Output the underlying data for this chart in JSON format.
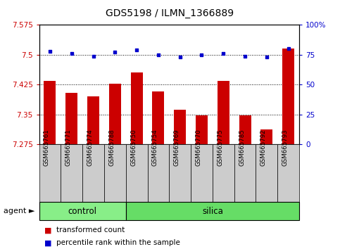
{
  "title": "GDS5198 / ILMN_1366889",
  "samples": [
    "GSM665761",
    "GSM665771",
    "GSM665774",
    "GSM665788",
    "GSM665750",
    "GSM665754",
    "GSM665769",
    "GSM665770",
    "GSM665775",
    "GSM665785",
    "GSM665792",
    "GSM665793"
  ],
  "red_values": [
    7.435,
    7.405,
    7.395,
    7.427,
    7.455,
    7.408,
    7.362,
    7.348,
    7.435,
    7.348,
    7.312,
    7.515
  ],
  "blue_values": [
    78,
    76,
    74,
    77,
    79,
    75,
    73,
    75,
    76,
    74,
    73,
    80
  ],
  "ylim_left": [
    7.275,
    7.575
  ],
  "ylim_right": [
    0,
    100
  ],
  "yticks_left": [
    7.275,
    7.35,
    7.425,
    7.5,
    7.575
  ],
  "yticks_right": [
    0,
    25,
    50,
    75,
    100
  ],
  "ytick_labels_left": [
    "7.275",
    "7.35",
    "7.425",
    "7.5",
    "7.575"
  ],
  "ytick_labels_right": [
    "0",
    "25",
    "50",
    "75",
    "100%"
  ],
  "control_count": 4,
  "silica_count": 8,
  "control_label": "control",
  "silica_label": "silica",
  "agent_label": "agent",
  "legend_red": "transformed count",
  "legend_blue": "percentile rank within the sample",
  "bar_color": "#cc0000",
  "dot_color": "#0000cc",
  "control_bg": "#88ee88",
  "silica_bg": "#66dd66",
  "tick_bg": "#cccccc",
  "bar_width": 0.55
}
